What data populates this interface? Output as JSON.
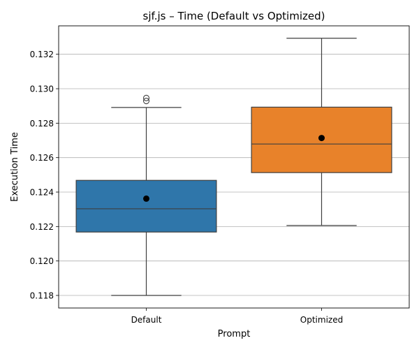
{
  "chart_data": {
    "type": "box",
    "title": "sjf.js – Time (Default vs Optimized)",
    "xlabel": "Prompt",
    "ylabel": "Execution Time",
    "categories": [
      "Default",
      "Optimized"
    ],
    "ylim": [
      0.11727,
      0.13365
    ],
    "yticks": [
      0.118,
      0.12,
      0.122,
      0.124,
      0.126,
      0.128,
      0.13,
      0.132
    ],
    "ytick_labels": [
      "0.118",
      "0.120",
      "0.122",
      "0.124",
      "0.126",
      "0.128",
      "0.130",
      "0.132"
    ],
    "grid": "horizontal",
    "boxes": [
      {
        "name": "Default",
        "color": "#2f76aa",
        "whisker_low": 0.118,
        "q1": 0.12168,
        "median": 0.12303,
        "q3": 0.12468,
        "whisker_high": 0.12891,
        "mean": 0.12362,
        "outliers": [
          0.12929,
          0.12946
        ]
      },
      {
        "name": "Optimized",
        "color": "#e8822a",
        "whisker_low": 0.12206,
        "q1": 0.12513,
        "median": 0.12679,
        "q3": 0.12893,
        "whisker_high": 0.13293,
        "mean": 0.12714,
        "outliers": []
      }
    ]
  }
}
